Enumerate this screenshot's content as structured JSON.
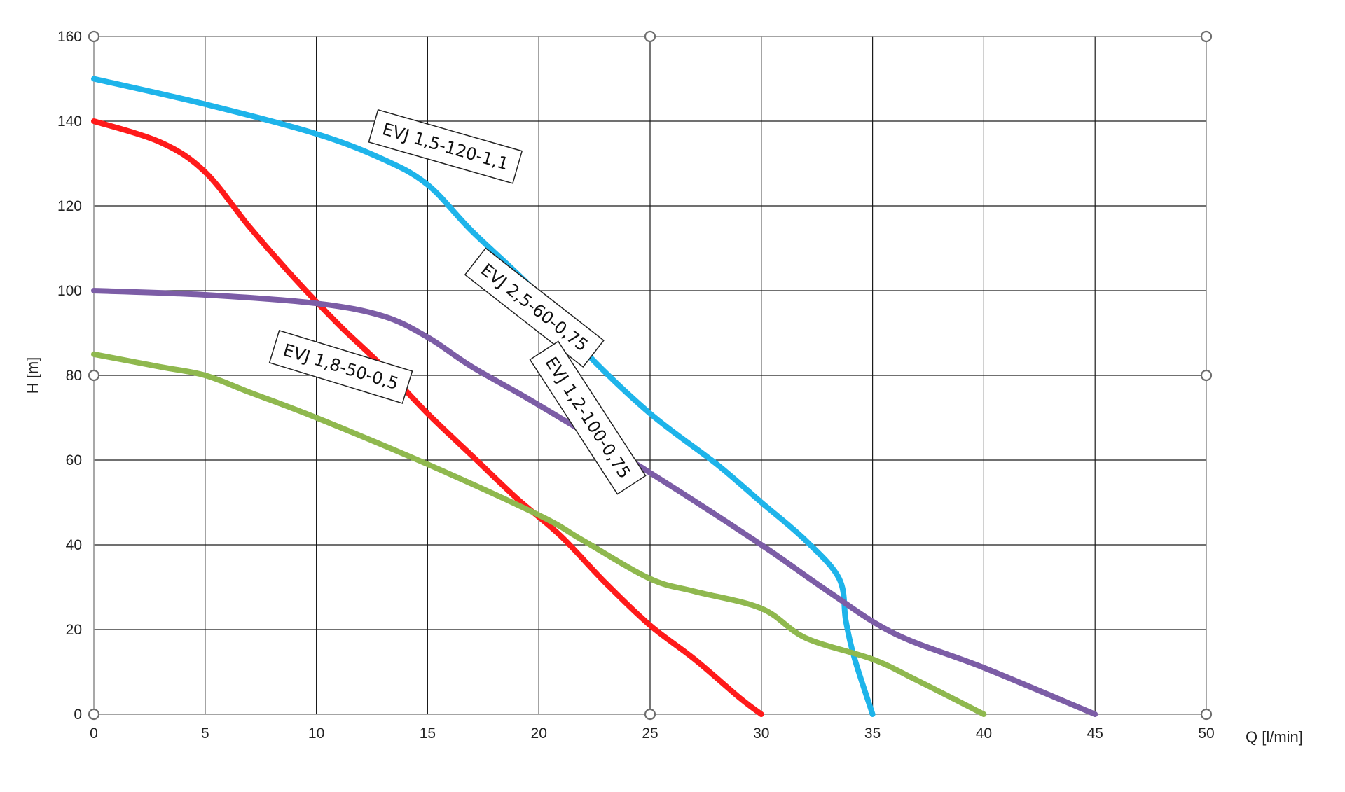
{
  "chart_data": {
    "type": "line",
    "title": "",
    "xlabel": "Q [l/min]",
    "ylabel": "H [m]",
    "xlim": [
      0,
      50
    ],
    "ylim": [
      0,
      160
    ],
    "xticks": [
      "0",
      "5",
      "10",
      "15",
      "20",
      "25",
      "30",
      "35",
      "40",
      "45",
      "50"
    ],
    "yticks": [
      "0",
      "20",
      "40",
      "60",
      "80",
      "100",
      "120",
      "140",
      "160"
    ],
    "grid": true,
    "legend": "inline labels",
    "series": [
      {
        "name": "EVJ 1,5-120-1,1",
        "color": "#1eb4ea",
        "x": [
          0,
          5,
          10,
          13,
          15,
          17,
          20,
          22,
          25,
          28,
          30,
          32,
          33.5,
          33.8,
          34.2,
          35
        ],
        "y": [
          150,
          144,
          137,
          131,
          125,
          114,
          99,
          86,
          71,
          59,
          50,
          41,
          32,
          22,
          13,
          0
        ]
      },
      {
        "name": "EVJ 1,2-100-0,75",
        "color": "#ff1a1a",
        "x": [
          0,
          3,
          5,
          7,
          9,
          11,
          13,
          15,
          17,
          19,
          21,
          23,
          25,
          27,
          29,
          30
        ],
        "y": [
          140,
          135,
          128,
          115,
          103,
          92,
          82,
          71,
          61,
          51,
          42,
          31,
          21,
          13,
          4,
          0
        ]
      },
      {
        "name": "EVJ 2,5-60-0,75",
        "color": "#7c5da6",
        "x": [
          0,
          5,
          10,
          13,
          15,
          17,
          20,
          25,
          30,
          33,
          36,
          40,
          45
        ],
        "y": [
          100,
          99,
          97,
          94,
          89,
          82,
          73,
          57,
          40,
          29,
          19,
          11,
          0
        ]
      },
      {
        "name": "EVJ 1,8-50-0,5",
        "color": "#8fb84e",
        "x": [
          0,
          3,
          5,
          7,
          10,
          15,
          20,
          22,
          25,
          27,
          30,
          32,
          35,
          37,
          40
        ],
        "y": [
          85,
          82,
          80,
          76,
          70,
          59,
          47,
          41,
          32,
          29,
          25,
          18,
          13,
          8,
          0
        ]
      }
    ],
    "annotations": [
      {
        "text": "EVJ 1,5-120-1,1",
        "x": 15.8,
        "y": 134,
        "angle": 16
      },
      {
        "text": "EVJ 2,5-60-0,75",
        "x": 19.8,
        "y": 96,
        "angle": 38
      },
      {
        "text": "EVJ 1,8-50-0,5",
        "x": 11.1,
        "y": 82,
        "angle": 17
      },
      {
        "text": "EVJ 1,2-100-0,75",
        "x": 22.2,
        "y": 70,
        "angle": 57
      }
    ]
  }
}
